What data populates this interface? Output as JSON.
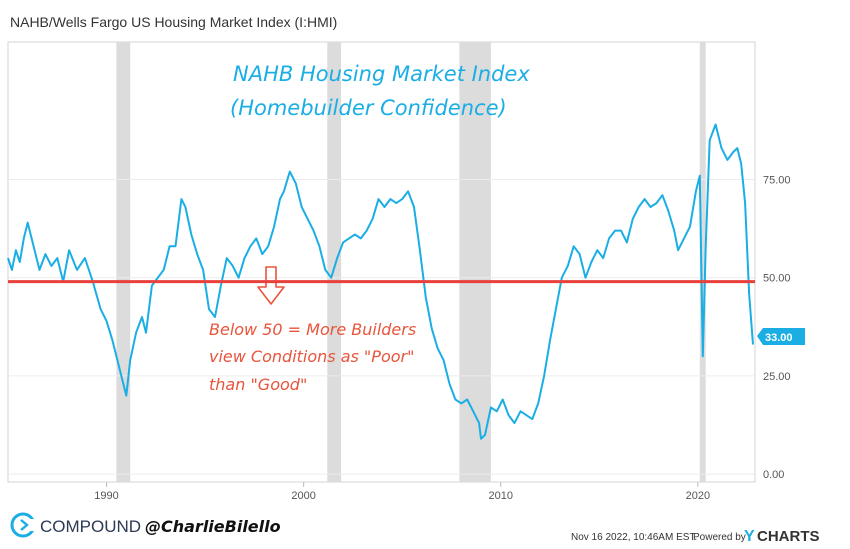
{
  "header": {
    "title": "NAHB/Wells Fargo US Housing Market Index (I:HMI)"
  },
  "annotations": {
    "title_line1": "NAHB Housing Market Index",
    "title_line2": "(Homebuilder Confidence)",
    "note_line1": "Below 50 = More Builders",
    "note_line2": "view Conditions as \"Poor\"",
    "note_line3": "than \"Good\""
  },
  "footer": {
    "brand": "COMPOUND",
    "handle": "@CharlieBilello",
    "timestamp": "Nov 16 2022, 10:46AM EST.",
    "powered_by": "Powered by",
    "ycharts_y": "Y",
    "ycharts_rest": "CHARTS"
  },
  "colors": {
    "series": "#1aaee5",
    "reference_line": "#e8413c",
    "annotation_title": "#1aaee5",
    "annotation_note": "#e8553c",
    "recession_band": "#dcdcdc",
    "end_badge": "#1aaee5"
  },
  "chart_data": {
    "type": "line",
    "title": "NAHB Housing Market Index",
    "subtitle": "(Homebuilder Confidence)",
    "xlabel": "",
    "ylabel": "",
    "xlim": [
      1985.0,
      2022.9
    ],
    "ylim": [
      -2,
      110
    ],
    "x_ticks": [
      1990,
      2000,
      2010,
      2020
    ],
    "x_tick_labels": [
      "1990",
      "2000",
      "2010",
      "2020"
    ],
    "y_ticks": [
      0,
      25,
      50,
      75
    ],
    "y_tick_labels": [
      "0.00",
      "25.00",
      "50.00",
      "75.00"
    ],
    "grid": true,
    "legend": "none",
    "reference_line": {
      "value": 49
    },
    "end_value_label": "33.00",
    "recession_bands": [
      [
        1990.5,
        1991.2
      ],
      [
        2001.2,
        2001.9
      ],
      [
        2007.9,
        2009.5
      ],
      [
        2020.1,
        2020.4
      ]
    ],
    "series": [
      {
        "x": [
          1985.0,
          1985.2,
          1985.4,
          1985.6,
          1985.8,
          1986.0,
          1986.3,
          1986.6,
          1986.9,
          1987.2,
          1987.5,
          1987.8,
          1988.1,
          1988.5,
          1988.9,
          1989.3,
          1989.7,
          1990.0,
          1990.3,
          1990.6,
          1990.9,
          1991.0,
          1991.2,
          1991.5,
          1991.8,
          1992.0,
          1992.3,
          1992.6,
          1992.9,
          1993.2,
          1993.5,
          1993.8,
          1994.0,
          1994.3,
          1994.6,
          1994.9,
          1995.2,
          1995.5,
          1995.8,
          1996.1,
          1996.4,
          1996.7,
          1997.0,
          1997.3,
          1997.6,
          1997.9,
          1998.2,
          1998.5,
          1998.8,
          1999.0,
          1999.3,
          1999.6,
          1999.9,
          2000.2,
          2000.5,
          2000.8,
          2001.1,
          2001.4,
          2001.7,
          2002.0,
          2002.3,
          2002.6,
          2002.9,
          2003.2,
          2003.5,
          2003.8,
          2004.1,
          2004.4,
          2004.7,
          2005.0,
          2005.3,
          2005.6,
          2005.9,
          2006.2,
          2006.5,
          2006.8,
          2007.1,
          2007.4,
          2007.7,
          2008.0,
          2008.3,
          2008.6,
          2008.9,
          2009.0,
          2009.2,
          2009.5,
          2009.8,
          2010.1,
          2010.4,
          2010.7,
          2011.0,
          2011.3,
          2011.6,
          2011.9,
          2012.2,
          2012.5,
          2012.8,
          2013.1,
          2013.4,
          2013.7,
          2014.0,
          2014.3,
          2014.6,
          2014.9,
          2015.2,
          2015.5,
          2015.8,
          2016.1,
          2016.4,
          2016.7,
          2017.0,
          2017.3,
          2017.6,
          2017.9,
          2018.2,
          2018.5,
          2018.8,
          2019.0,
          2019.3,
          2019.6,
          2019.9,
          2020.1,
          2020.25,
          2020.4,
          2020.6,
          2020.9,
          2021.2,
          2021.5,
          2021.8,
          2022.0,
          2022.2,
          2022.4,
          2022.6,
          2022.8
        ],
        "values": [
          55,
          52,
          57,
          54,
          60,
          64,
          58,
          52,
          56,
          53,
          55,
          49,
          57,
          52,
          55,
          49,
          42,
          39,
          34,
          28,
          22,
          20,
          29,
          36,
          40,
          36,
          48,
          50,
          52,
          58,
          58,
          70,
          68,
          61,
          56,
          52,
          42,
          40,
          48,
          55,
          53,
          50,
          55,
          58,
          60,
          56,
          58,
          63,
          70,
          72,
          77,
          74,
          68,
          65,
          62,
          58,
          52,
          50,
          55,
          59,
          60,
          61,
          60,
          62,
          65,
          70,
          68,
          70,
          69,
          70,
          72,
          68,
          57,
          45,
          37,
          32,
          29,
          23,
          19,
          18,
          19,
          16,
          13,
          9,
          10,
          17,
          16,
          19,
          15,
          13,
          16,
          15,
          14,
          18,
          25,
          34,
          42,
          50,
          53,
          58,
          56,
          50,
          54,
          57,
          55,
          60,
          62,
          62,
          59,
          65,
          68,
          70,
          68,
          69,
          71,
          67,
          62,
          57,
          60,
          63,
          72,
          76,
          30,
          58,
          85,
          89,
          83,
          80,
          82,
          83,
          79,
          69,
          46,
          33
        ],
        "_note": "Monthly HMI values approximated from the chart"
      }
    ]
  }
}
